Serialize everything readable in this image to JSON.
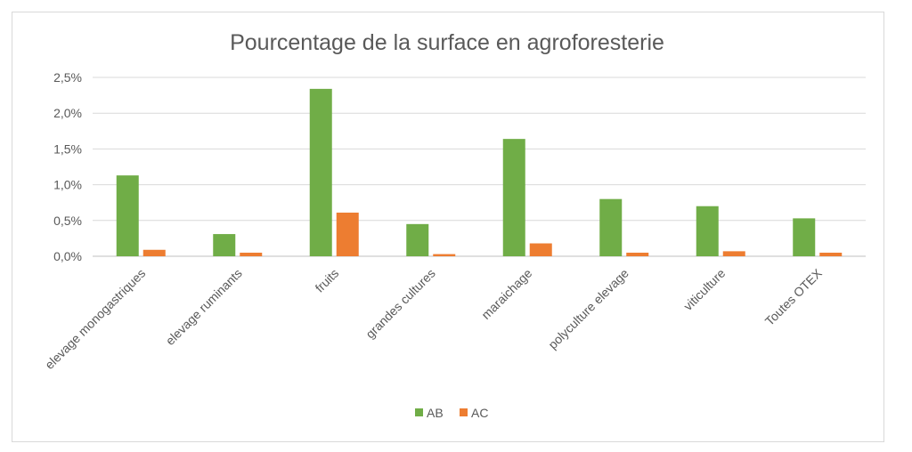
{
  "chart_data": {
    "type": "bar",
    "title": "Pourcentage de la surface en agroforesterie",
    "xlabel": "",
    "ylabel": "",
    "categories": [
      "elevage monogastriques",
      "elevage ruminants",
      "fruits",
      "grandes cultures",
      "maraichage",
      "polyculture elevage",
      "viticulture",
      "Toutes OTEX"
    ],
    "series": [
      {
        "name": "AB",
        "color": "#70ad47",
        "values": [
          1.13,
          0.31,
          2.34,
          0.45,
          1.64,
          0.8,
          0.7,
          0.53
        ]
      },
      {
        "name": "AC",
        "color": "#ed7d31",
        "values": [
          0.09,
          0.05,
          0.61,
          0.03,
          0.18,
          0.05,
          0.07,
          0.05
        ]
      }
    ],
    "ylim": [
      0,
      2.5
    ],
    "yticks": [
      0,
      0.5,
      1.0,
      1.5,
      2.0,
      2.5
    ],
    "ytick_labels": [
      "0,0%",
      "0,5%",
      "1,0%",
      "1,5%",
      "2,0%",
      "2,5%"
    ],
    "grid": true,
    "legend_position": "bottom"
  }
}
